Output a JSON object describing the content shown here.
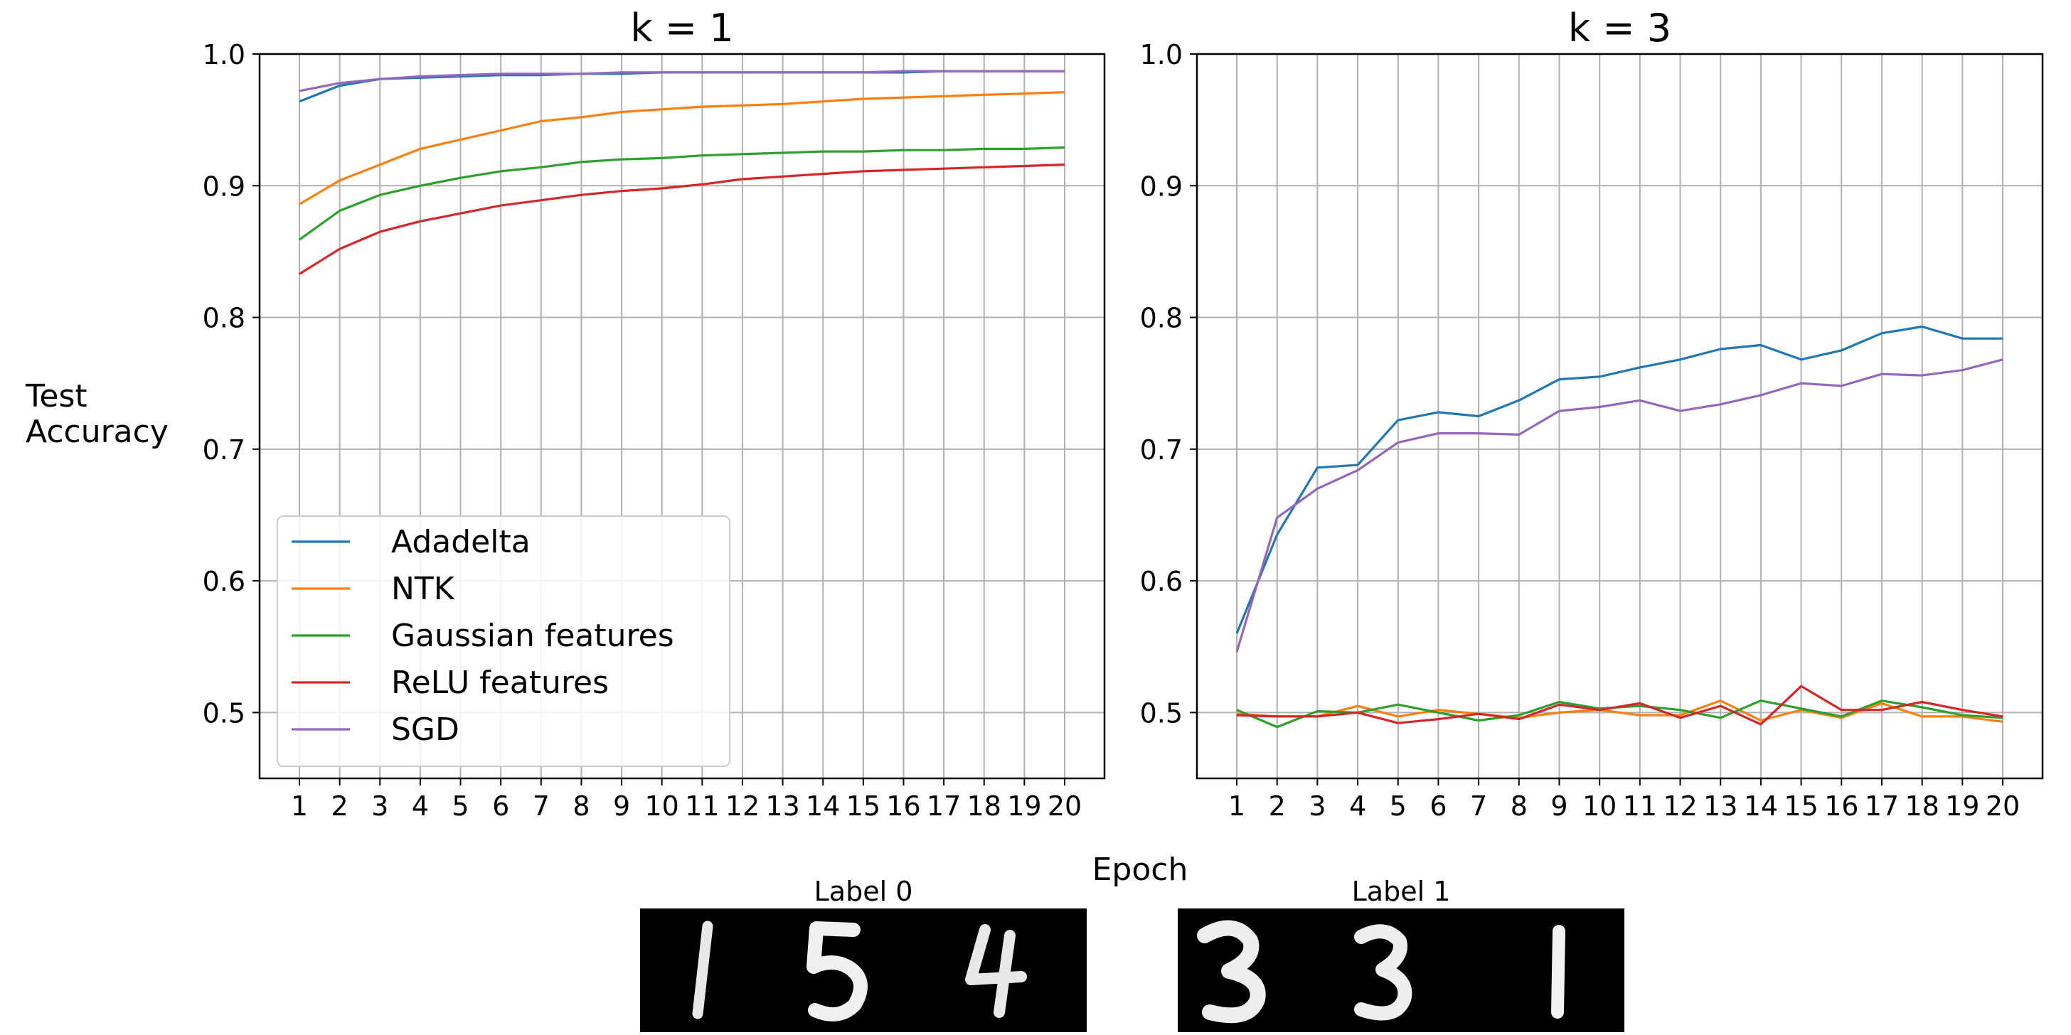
{
  "chart_data": [
    {
      "type": "line",
      "title": "k = 1",
      "x": [
        1,
        2,
        3,
        4,
        5,
        6,
        7,
        8,
        9,
        10,
        11,
        12,
        13,
        14,
        15,
        16,
        17,
        18,
        19,
        20
      ],
      "xtick_labels": [
        "1",
        "2",
        "3",
        "4",
        "5",
        "6",
        "7",
        "8",
        "9",
        "10",
        "11",
        "12",
        "13",
        "14",
        "15",
        "16",
        "17",
        "18",
        "19",
        "20"
      ],
      "ylim": [
        0.45,
        1.0
      ],
      "yticks": [
        "0.5",
        "0.6",
        "0.7",
        "0.8",
        "0.9",
        "1.0"
      ],
      "grid": true,
      "legend": "lower-left",
      "series": [
        {
          "name": "Adadelta",
          "color": "#1f77b4",
          "values": [
            0.964,
            0.976,
            0.981,
            0.982,
            0.983,
            0.984,
            0.984,
            0.985,
            0.985,
            0.986,
            0.986,
            0.986,
            0.986,
            0.986,
            0.986,
            0.986,
            0.987,
            0.987,
            0.987,
            0.987
          ]
        },
        {
          "name": "NTK",
          "color": "#ff7f0e",
          "values": [
            0.886,
            0.904,
            0.916,
            0.928,
            0.935,
            0.942,
            0.949,
            0.952,
            0.956,
            0.958,
            0.96,
            0.961,
            0.962,
            0.964,
            0.966,
            0.967,
            0.968,
            0.969,
            0.97,
            0.971
          ]
        },
        {
          "name": "Gaussian features",
          "color": "#2ca02c",
          "values": [
            0.859,
            0.881,
            0.893,
            0.9,
            0.906,
            0.911,
            0.914,
            0.918,
            0.92,
            0.921,
            0.923,
            0.924,
            0.925,
            0.926,
            0.926,
            0.927,
            0.927,
            0.928,
            0.928,
            0.929
          ]
        },
        {
          "name": "ReLU features",
          "color": "#d62728",
          "values": [
            0.833,
            0.852,
            0.865,
            0.873,
            0.879,
            0.885,
            0.889,
            0.893,
            0.896,
            0.898,
            0.901,
            0.905,
            0.907,
            0.909,
            0.911,
            0.912,
            0.913,
            0.914,
            0.915,
            0.916
          ]
        },
        {
          "name": "SGD",
          "color": "#9467bd",
          "values": [
            0.972,
            0.978,
            0.981,
            0.983,
            0.984,
            0.985,
            0.985,
            0.985,
            0.986,
            0.986,
            0.986,
            0.986,
            0.986,
            0.986,
            0.986,
            0.987,
            0.987,
            0.987,
            0.987,
            0.987
          ]
        }
      ]
    },
    {
      "type": "line",
      "title": "k = 3",
      "x": [
        1,
        2,
        3,
        4,
        5,
        6,
        7,
        8,
        9,
        10,
        11,
        12,
        13,
        14,
        15,
        16,
        17,
        18,
        19,
        20
      ],
      "xtick_labels": [
        "1",
        "2",
        "3",
        "4",
        "5",
        "6",
        "7",
        "8",
        "9",
        "10",
        "11",
        "12",
        "13",
        "14",
        "15",
        "16",
        "17",
        "18",
        "19",
        "20"
      ],
      "ylim": [
        0.45,
        1.0
      ],
      "yticks": [
        "0.5",
        "0.6",
        "0.7",
        "0.8",
        "0.9",
        "1.0"
      ],
      "grid": true,
      "series": [
        {
          "name": "Adadelta",
          "color": "#1f77b4",
          "values": [
            0.56,
            0.635,
            0.686,
            0.688,
            0.722,
            0.728,
            0.725,
            0.737,
            0.753,
            0.755,
            0.762,
            0.768,
            0.776,
            0.779,
            0.768,
            0.775,
            0.788,
            0.793,
            0.784,
            0.784
          ]
        },
        {
          "name": "NTK",
          "color": "#ff7f0e",
          "values": [
            0.499,
            0.497,
            0.497,
            0.505,
            0.497,
            0.502,
            0.499,
            0.496,
            0.5,
            0.502,
            0.498,
            0.498,
            0.509,
            0.494,
            0.502,
            0.496,
            0.507,
            0.497,
            0.497,
            0.493
          ]
        },
        {
          "name": "Gaussian features",
          "color": "#2ca02c",
          "values": [
            0.502,
            0.489,
            0.501,
            0.5,
            0.506,
            0.5,
            0.494,
            0.498,
            0.508,
            0.503,
            0.505,
            0.502,
            0.496,
            0.509,
            0.503,
            0.497,
            0.509,
            0.504,
            0.498,
            0.496
          ]
        },
        {
          "name": "ReLU features",
          "color": "#d62728",
          "values": [
            0.498,
            0.497,
            0.497,
            0.5,
            0.492,
            0.495,
            0.499,
            0.495,
            0.506,
            0.502,
            0.507,
            0.496,
            0.505,
            0.491,
            0.52,
            0.502,
            0.502,
            0.508,
            0.502,
            0.497
          ]
        },
        {
          "name": "SGD",
          "color": "#9467bd",
          "values": [
            0.546,
            0.648,
            0.67,
            0.684,
            0.705,
            0.712,
            0.712,
            0.711,
            0.729,
            0.732,
            0.737,
            0.729,
            0.734,
            0.741,
            0.75,
            0.748,
            0.757,
            0.756,
            0.76,
            0.768
          ]
        }
      ]
    }
  ],
  "shared": {
    "ylabel_line1": "Test",
    "ylabel_line2": "Accuracy",
    "xlabel": "Epoch"
  },
  "examples": [
    {
      "label": "Label 0",
      "digits": [
        "1",
        "5",
        "4"
      ]
    },
    {
      "label": "Label 1",
      "digits": [
        "3",
        "3",
        "1"
      ]
    }
  ]
}
